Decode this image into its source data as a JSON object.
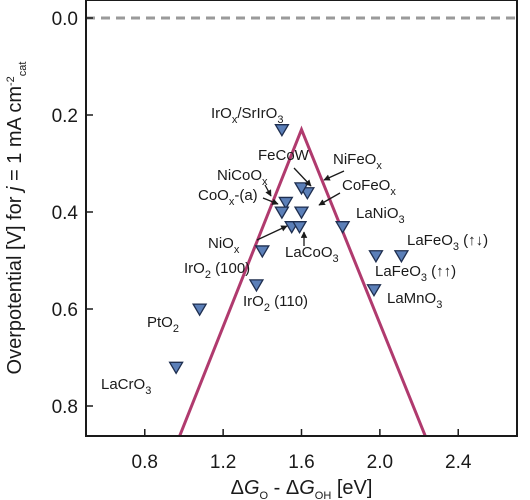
{
  "chart_data": {
    "type": "scatter",
    "title": "",
    "xlabel": {
      "parts": [
        [
          "Δ",
          ""
        ],
        [
          "G",
          "i"
        ],
        [
          "O",
          "sub"
        ],
        [
          " - Δ",
          ""
        ],
        [
          "G",
          "i"
        ],
        [
          "OH",
          "sub"
        ],
        [
          " [eV]",
          ""
        ]
      ]
    },
    "ylabel": {
      "parts": [
        [
          "Overpotential [V] for ",
          ""
        ],
        [
          "j",
          "i"
        ],
        [
          " = 1 mA cm",
          ""
        ],
        [
          "-2",
          "sup"
        ],
        [
          "cat",
          "sub"
        ]
      ]
    },
    "xlim": [
      0.5,
      2.7
    ],
    "ylim": [
      0.0,
      0.87
    ],
    "y_inverted": true,
    "xticks": [
      0.8,
      1.2,
      1.6,
      2.0,
      2.4
    ],
    "yticks": [
      0.0,
      0.2,
      0.4,
      0.6,
      0.8
    ],
    "xtick_labels": [
      "0.8",
      "1.2",
      "1.6",
      "2.0",
      "2.4"
    ],
    "ytick_labels": [
      "0.0",
      "0.2",
      "0.4",
      "0.6",
      "0.8"
    ],
    "reference_line": {
      "y": 0.0,
      "style": "dashed",
      "color": "#9a9a9a"
    },
    "volcano": {
      "points": [
        [
          0.97,
          0.87
        ],
        [
          1.6,
          0.23
        ],
        [
          2.24,
          0.87
        ]
      ],
      "color": "#b03a6e"
    },
    "marker": {
      "shape": "down-triangle",
      "fill": "#5b7fb8",
      "stroke": "#1e2e4f"
    },
    "points": [
      {
        "x": 1.5,
        "y": 0.23,
        "label": [
          [
            "IrO",
            ""
          ],
          [
            "x",
            "sub"
          ],
          [
            "/SrIrO",
            ""
          ],
          [
            "3",
            "sub"
          ]
        ]
      },
      {
        "x": 1.63,
        "y": 0.36,
        "label": [
          [
            "FeCoW",
            ""
          ]
        ]
      },
      {
        "x": 1.6,
        "y": 0.35,
        "label": [
          [
            "NiFeO",
            ""
          ],
          [
            "x",
            "sub"
          ]
        ]
      },
      {
        "x": 1.52,
        "y": 0.38,
        "label": [
          [
            "NiCoO",
            ""
          ],
          [
            "x",
            "sub"
          ]
        ]
      },
      {
        "x": 1.5,
        "y": 0.4,
        "label": [
          [
            "CoO",
            ""
          ],
          [
            "x",
            "sub"
          ],
          [
            "-(a)",
            ""
          ]
        ]
      },
      {
        "x": 1.6,
        "y": 0.4,
        "label": [
          [
            "CoFeO",
            ""
          ],
          [
            "x",
            "sub"
          ]
        ]
      },
      {
        "x": 1.81,
        "y": 0.43,
        "label": [
          [
            "LaNiO",
            ""
          ],
          [
            "3",
            "sub"
          ]
        ]
      },
      {
        "x": 1.55,
        "y": 0.43,
        "label": [
          [
            "NiO",
            ""
          ],
          [
            "x",
            "sub"
          ]
        ]
      },
      {
        "x": 1.59,
        "y": 0.43,
        "label": [
          [
            "LaCoO",
            ""
          ],
          [
            "3",
            "sub"
          ]
        ]
      },
      {
        "x": 1.4,
        "y": 0.48,
        "label": [
          [
            "IrO",
            ""
          ],
          [
            "2",
            "sub"
          ],
          [
            " (100)",
            ""
          ]
        ]
      },
      {
        "x": 1.37,
        "y": 0.55,
        "label": [
          [
            "IrO",
            ""
          ],
          [
            "2",
            "sub"
          ],
          [
            " (110)",
            ""
          ]
        ]
      },
      {
        "x": 1.08,
        "y": 0.6,
        "label": [
          [
            "PtO",
            ""
          ],
          [
            "2",
            "sub"
          ]
        ]
      },
      {
        "x": 0.96,
        "y": 0.72,
        "label": [
          [
            "LaCrO",
            ""
          ],
          [
            "3",
            "sub"
          ]
        ]
      },
      {
        "x": 2.11,
        "y": 0.49,
        "label": [
          [
            "LaFeO",
            ""
          ],
          [
            "3",
            "sub"
          ],
          [
            " (↑↓)",
            ""
          ]
        ]
      },
      {
        "x": 1.98,
        "y": 0.49,
        "label": [
          [
            "LaFeO",
            ""
          ],
          [
            "3",
            "sub"
          ],
          [
            " (↑↑)",
            ""
          ]
        ]
      },
      {
        "x": 1.97,
        "y": 0.56,
        "label": [
          [
            "LaMnO",
            ""
          ],
          [
            "3",
            "sub"
          ]
        ]
      }
    ]
  }
}
